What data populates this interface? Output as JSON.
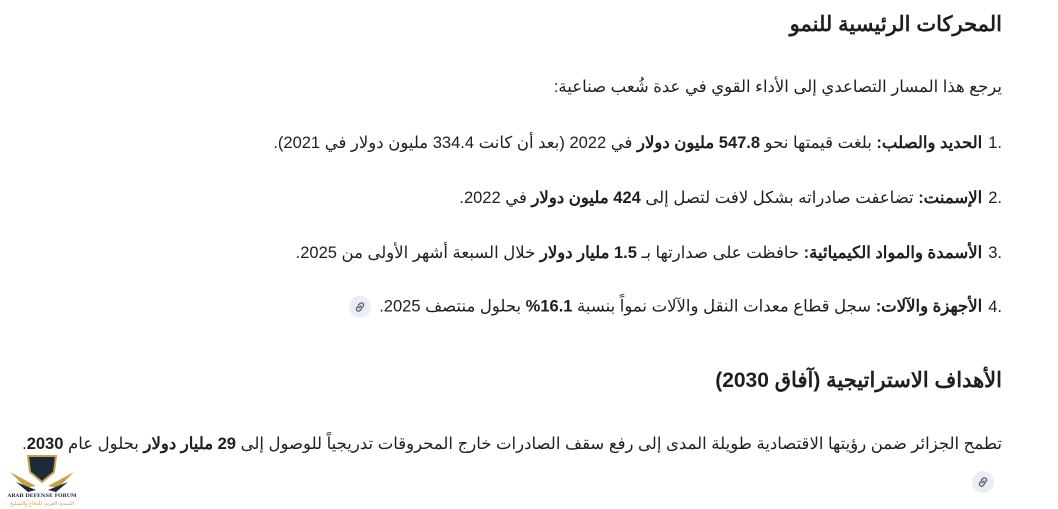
{
  "section1": {
    "heading": "المحركات الرئيسية للنمو",
    "intro": "يرجع هذا المسار التصاعدي إلى الأداء القوي في عدة شُعب صناعية:",
    "items": [
      {
        "num": "1.",
        "segments": [
          {
            "t": "الحديد والصلب:",
            "b": true
          },
          {
            "t": " بلغت قيمتها نحو ",
            "b": false
          },
          {
            "t": "547.8 مليون دولار",
            "b": true
          },
          {
            "t": " في 2022 (بعد أن كانت 334.4 مليون دولار في 2021).",
            "b": false
          }
        ],
        "link": false
      },
      {
        "num": "2.",
        "segments": [
          {
            "t": "الإسمنت:",
            "b": true
          },
          {
            "t": " تضاعفت صادراته بشكل لافت لتصل إلى ",
            "b": false
          },
          {
            "t": "424 مليون دولار",
            "b": true
          },
          {
            "t": " في 2022.",
            "b": false
          }
        ],
        "link": false
      },
      {
        "num": "3.",
        "segments": [
          {
            "t": "الأسمدة والمواد الكيميائية:",
            "b": true
          },
          {
            "t": " حافظت على صدارتها بـ ",
            "b": false
          },
          {
            "t": "1.5 مليار دولار",
            "b": true
          },
          {
            "t": " خلال السبعة أشهر الأولى من 2025.",
            "b": false
          }
        ],
        "link": false
      },
      {
        "num": "4.",
        "segments": [
          {
            "t": "الأجهزة والآلات:",
            "b": true
          },
          {
            "t": " سجل قطاع معدات النقل والآلات نمواً بنسبة ",
            "b": false
          },
          {
            "t": "16.1%",
            "b": true
          },
          {
            "t": " بحلول منتصف 2025.",
            "b": false
          }
        ],
        "link": true
      }
    ]
  },
  "section2": {
    "heading": "الأهداف الاستراتيجية (آفاق 2030)",
    "segments": [
      {
        "t": "تطمح الجزائر ضمن رؤيتها الاقتصادية طويلة المدى إلى رفع سقف الصادرات خارج المحروقات تدريجياً للوصول إلى ",
        "b": false
      },
      {
        "t": "29 مليار دولار",
        "b": true
      },
      {
        "t": " بحلول عام ",
        "b": false
      },
      {
        "t": "2030",
        "b": true
      },
      {
        "t": ".",
        "b": false
      }
    ],
    "link": true
  },
  "watermark": {
    "text_en": "ARAB DEFENSE FORUM",
    "text_ar": "المنتدى العربي للدفاع والتسليح",
    "colors": {
      "gold": "#c9a24a",
      "navy": "#1c2a3a"
    }
  },
  "colors": {
    "text": "#1f1f1f",
    "chip_bg": "#e9eef6",
    "chip_icon": "#5f6368"
  }
}
